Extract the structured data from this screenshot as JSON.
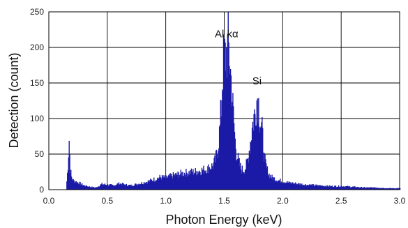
{
  "chart_data": {
    "type": "bar",
    "xlabel": "Photon Energy (keV)",
    "ylabel": "Detection (count)",
    "xlim": [
      0.0,
      3.0
    ],
    "ylim": [
      0,
      250
    ],
    "xticks": [
      "0.0",
      "0.5",
      "1.0",
      "1.5",
      "2.0",
      "2.5",
      "3.0"
    ],
    "yticks": [
      "0",
      "50",
      "100",
      "150",
      "200",
      "250"
    ],
    "grid": true,
    "bar_color": "#1a1aa6",
    "annotations": [
      {
        "text": "Al kα",
        "x": 1.52,
        "y": 214
      },
      {
        "text": "Si",
        "x": 1.78,
        "y": 148
      }
    ],
    "x": [
      0.15,
      0.16,
      0.17,
      0.18,
      0.19,
      0.2,
      0.22,
      0.25,
      0.3,
      0.35,
      0.4,
      0.45,
      0.5,
      0.55,
      0.6,
      0.65,
      0.7,
      0.75,
      0.8,
      0.85,
      0.9,
      0.95,
      1.0,
      1.05,
      1.1,
      1.15,
      1.2,
      1.25,
      1.3,
      1.35,
      1.4,
      1.42,
      1.44,
      1.46,
      1.47,
      1.48,
      1.49,
      1.5,
      1.51,
      1.52,
      1.53,
      1.54,
      1.55,
      1.56,
      1.57,
      1.58,
      1.59,
      1.6,
      1.62,
      1.64,
      1.66,
      1.68,
      1.7,
      1.72,
      1.74,
      1.75,
      1.76,
      1.77,
      1.78,
      1.79,
      1.8,
      1.81,
      1.82,
      1.83,
      1.84,
      1.86,
      1.88,
      1.9,
      1.95,
      2.0,
      2.05,
      2.1,
      2.2,
      2.3,
      2.4,
      2.5,
      2.6,
      2.7,
      2.8,
      2.9,
      3.0
    ],
    "y": [
      12,
      35,
      73,
      30,
      18,
      14,
      12,
      10,
      6,
      4,
      3,
      8,
      7,
      6,
      9,
      7,
      6,
      8,
      10,
      12,
      15,
      18,
      17,
      20,
      22,
      24,
      25,
      26,
      28,
      30,
      35,
      42,
      58,
      90,
      120,
      160,
      185,
      190,
      195,
      200,
      208,
      196,
      170,
      150,
      120,
      95,
      70,
      55,
      40,
      30,
      28,
      32,
      45,
      70,
      95,
      105,
      110,
      125,
      135,
      125,
      105,
      95,
      85,
      65,
      45,
      30,
      22,
      18,
      14,
      12,
      10,
      9,
      7,
      6,
      5,
      5,
      4,
      3,
      3,
      2,
      2
    ]
  }
}
